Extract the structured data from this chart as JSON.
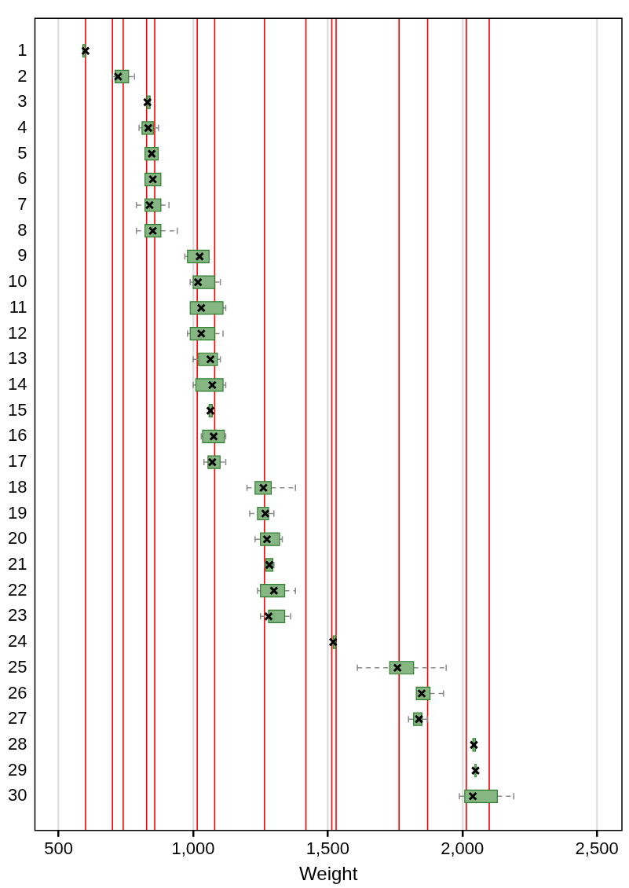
{
  "chart_data": {
    "type": "box",
    "orientation": "horizontal",
    "xlabel": "Weight",
    "marker": "cross",
    "color": "#86b783",
    "grid": "x",
    "categories": [
      "1",
      "2",
      "3",
      "4",
      "5",
      "6",
      "7",
      "8",
      "9",
      "10",
      "11",
      "12",
      "13",
      "14",
      "15",
      "16",
      "17",
      "18",
      "19",
      "20",
      "21",
      "22",
      "23",
      "24",
      "25",
      "26",
      "27",
      "28",
      "29",
      "30"
    ],
    "boxes": [
      {
        "low": 590,
        "q1": 590,
        "median": 595,
        "q3": 600,
        "high": 600,
        "mean": 600
      },
      {
        "low": 699,
        "q1": 710,
        "median": 735,
        "q3": 760,
        "high": 782,
        "mean": 721
      },
      {
        "low": 828,
        "q1": 828,
        "median": 834,
        "q3": 840,
        "high": 840,
        "mean": 830
      },
      {
        "low": 799,
        "q1": 810,
        "median": 831,
        "q3": 852,
        "high": 871,
        "mean": 833
      },
      {
        "low": 821,
        "q1": 821,
        "median": 846,
        "q3": 870,
        "high": 870,
        "mean": 846
      },
      {
        "low": 821,
        "q1": 821,
        "median": 850,
        "q3": 880,
        "high": 880,
        "mean": 850
      },
      {
        "low": 789,
        "q1": 821,
        "median": 838,
        "q3": 880,
        "high": 910,
        "mean": 838
      },
      {
        "low": 789,
        "q1": 821,
        "median": 850,
        "q3": 880,
        "high": 941,
        "mean": 850
      },
      {
        "low": 969,
        "q1": 979,
        "median": 1024,
        "q3": 1059,
        "high": 1059,
        "mean": 1024
      },
      {
        "low": 989,
        "q1": 1000,
        "median": 1018,
        "q3": 1080,
        "high": 1101,
        "mean": 1018
      },
      {
        "low": 989,
        "q1": 989,
        "median": 1030,
        "q3": 1111,
        "high": 1121,
        "mean": 1030
      },
      {
        "low": 979,
        "q1": 989,
        "median": 1030,
        "q3": 1080,
        "high": 1111,
        "mean": 1030
      },
      {
        "low": 1000,
        "q1": 1020,
        "median": 1064,
        "q3": 1090,
        "high": 1101,
        "mean": 1064
      },
      {
        "low": 1000,
        "q1": 1010,
        "median": 1071,
        "q3": 1111,
        "high": 1121,
        "mean": 1071
      },
      {
        "low": 1059,
        "q1": 1059,
        "median": 1064,
        "q3": 1071,
        "high": 1071,
        "mean": 1064
      },
      {
        "low": 1030,
        "q1": 1035,
        "median": 1076,
        "q3": 1116,
        "high": 1121,
        "mean": 1076
      },
      {
        "low": 1040,
        "q1": 1055,
        "median": 1071,
        "q3": 1100,
        "high": 1121,
        "mean": 1071
      },
      {
        "low": 1200,
        "q1": 1230,
        "median": 1261,
        "q3": 1290,
        "high": 1380,
        "mean": 1261
      },
      {
        "low": 1210,
        "q1": 1239,
        "median": 1268,
        "q3": 1280,
        "high": 1300,
        "mean": 1268
      },
      {
        "low": 1230,
        "q1": 1250,
        "median": 1274,
        "q3": 1321,
        "high": 1331,
        "mean": 1274
      },
      {
        "low": 1266,
        "q1": 1270,
        "median": 1283,
        "q3": 1296,
        "high": 1300,
        "mean": 1283
      },
      {
        "low": 1239,
        "q1": 1250,
        "median": 1300,
        "q3": 1340,
        "high": 1380,
        "mean": 1300
      },
      {
        "low": 1250,
        "q1": 1280,
        "median": 1300,
        "q3": 1340,
        "high": 1362,
        "mean": 1280
      },
      {
        "low": 1520,
        "q1": 1520,
        "median": 1525,
        "q3": 1530,
        "high": 1530,
        "mean": 1520
      },
      {
        "low": 1610,
        "q1": 1730,
        "median": 1759,
        "q3": 1819,
        "high": 1940,
        "mean": 1759
      },
      {
        "low": 1829,
        "q1": 1829,
        "median": 1849,
        "q3": 1880,
        "high": 1930,
        "mean": 1849
      },
      {
        "low": 1800,
        "q1": 1819,
        "median": 1839,
        "q3": 1850,
        "high": 1870,
        "mean": 1839
      },
      {
        "low": 2039,
        "q1": 2039,
        "median": 2043,
        "q3": 2049,
        "high": 2049,
        "mean": 2043
      },
      {
        "low": 2047,
        "q1": 2047,
        "median": 2049,
        "q3": 2051,
        "high": 2051,
        "mean": 2049
      },
      {
        "low": 1989,
        "q1": 2009,
        "median": 2039,
        "q3": 2130,
        "high": 2191,
        "mean": 2039
      }
    ],
    "xlim": [
      412,
      2593
    ],
    "xticks": [
      {
        "value": 500,
        "label": "500"
      },
      {
        "value": 1000,
        "label": "1,000"
      },
      {
        "value": 1500,
        "label": "1,500"
      },
      {
        "value": 2000,
        "label": "2,000"
      },
      {
        "value": 2500,
        "label": "2,500"
      }
    ],
    "ref_lines": [
      {
        "axis": "x",
        "value": 600,
        "color": "#ff0000"
      },
      {
        "axis": "x",
        "value": 700,
        "color": "#ff0000"
      },
      {
        "axis": "x",
        "value": 740,
        "color": "#ff0000"
      },
      {
        "axis": "x",
        "value": 827,
        "color": "#ff0000"
      },
      {
        "axis": "x",
        "value": 857,
        "color": "#ff0000"
      },
      {
        "axis": "x",
        "value": 1015,
        "color": "#ff0000"
      },
      {
        "axis": "x",
        "value": 1080,
        "color": "#ff0000"
      },
      {
        "axis": "x",
        "value": 1265,
        "color": "#ff0000"
      },
      {
        "axis": "x",
        "value": 1419,
        "color": "#ff0000"
      },
      {
        "axis": "x",
        "value": 1515,
        "color": "#ff0000"
      },
      {
        "axis": "x",
        "value": 1531,
        "color": "#ff0000"
      },
      {
        "axis": "x",
        "value": 1765,
        "color": "#ff0000"
      },
      {
        "axis": "x",
        "value": 1871,
        "color": "#ff0000"
      },
      {
        "axis": "x",
        "value": 2015,
        "color": "#ff0000"
      },
      {
        "axis": "x",
        "value": 2100,
        "color": "#ff0000"
      }
    ]
  }
}
